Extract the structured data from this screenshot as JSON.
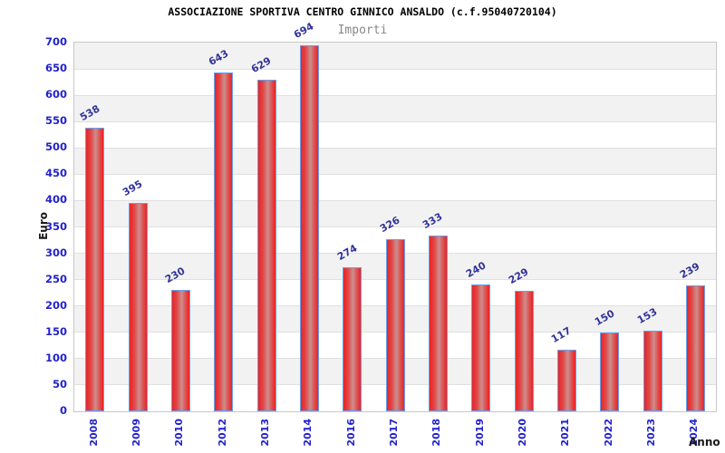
{
  "chart_data": {
    "type": "bar",
    "title": "ASSOCIAZIONE SPORTIVA CENTRO GINNICO ANSALDO (c.f.95040720104)",
    "subtitle": "Importi",
    "xlabel": "Anno",
    "ylabel": "Euro",
    "categories": [
      "2008",
      "2009",
      "2010",
      "2012",
      "2013",
      "2014",
      "2016",
      "2017",
      "2018",
      "2019",
      "2020",
      "2021",
      "2022",
      "2023",
      "2024"
    ],
    "values": [
      538,
      395,
      230,
      643,
      629,
      694,
      274,
      326,
      333,
      240,
      229,
      117,
      150,
      153,
      239
    ],
    "ylim": [
      0,
      700
    ],
    "ytick_step": 50,
    "grid": "horizontal-bands",
    "legend": "none",
    "style": {
      "tick_label_color": "#2222cc",
      "value_label_color": "#333399",
      "bar_border_color": "#64a0f0",
      "bar_edge_color": "#ed2222",
      "bar_mid_color": "#cd8e8e",
      "bar_inner_color": "#e04848",
      "band_color": "#f2f2f2",
      "band_alt_color": "#ffffff",
      "gridline_color": "#e0e0e0",
      "plot_border_color": "#c8c8c8",
      "title_color": "#000000",
      "subtitle_color": "#888888",
      "axis_title_color": "#1a1a1a"
    }
  }
}
